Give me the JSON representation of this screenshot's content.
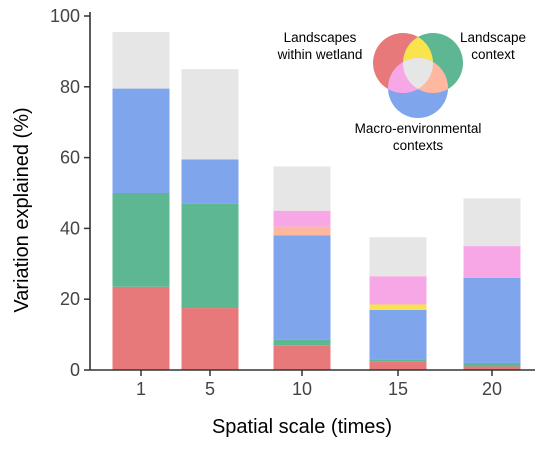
{
  "chart_data": {
    "type": "bar",
    "stacked": true,
    "xlabel": "Spatial scale (times)",
    "ylabel": "Variation explained (%)",
    "ylim": [
      0,
      100
    ],
    "yticks": [
      0,
      20,
      40,
      60,
      80,
      100
    ],
    "categories": [
      "1",
      "5",
      "10",
      "15",
      "20"
    ],
    "grid": false,
    "legend_placement": "top-right (Venn diagram)",
    "series": [
      {
        "key": "within",
        "color": "#E8797A",
        "values": [
          23.5,
          17.5,
          7.0,
          2.5,
          1.0
        ]
      },
      {
        "key": "context",
        "color": "#5DB792",
        "values": [
          26.5,
          29.5,
          1.5,
          0.5,
          1.0
        ]
      },
      {
        "key": "macro",
        "color": "#7FA6EC",
        "values": [
          29.5,
          12.5,
          29.5,
          14.0,
          24.0
        ]
      },
      {
        "key": "ab",
        "color": "#F9E44E",
        "values": [
          0,
          0,
          0,
          1.5,
          0
        ]
      },
      {
        "key": "bc",
        "color": "#FFB8A0",
        "values": [
          0,
          0,
          2.5,
          0,
          0
        ]
      },
      {
        "key": "ac",
        "color": "#F8A7E6",
        "values": [
          0,
          0,
          4.5,
          8.0,
          9.0
        ]
      },
      {
        "key": "shared",
        "color": "#E6E6E6",
        "values": [
          16.0,
          25.5,
          12.5,
          11.0,
          13.5
        ]
      }
    ],
    "venn": {
      "labels": {
        "within": [
          "Landscapes",
          "within wetland"
        ],
        "context": [
          "Landscape",
          "context"
        ],
        "macro": [
          "Macro-environmental",
          "contexts"
        ]
      },
      "colors": {
        "within": "#E8797A",
        "context": "#5DB792",
        "macro": "#7FA6EC",
        "within_context": "#F9E44E",
        "within_macro": "#F8A7E6",
        "context_macro": "#FFB8A0",
        "all": "#E6E6E6"
      }
    }
  }
}
